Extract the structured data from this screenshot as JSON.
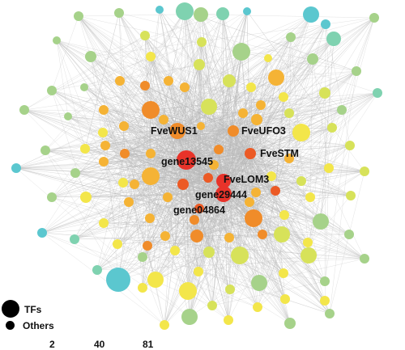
{
  "network": {
    "hub_labels": [
      {
        "id": "FveWUS1",
        "text": "FveWUS1"
      },
      {
        "id": "FveUFO3",
        "text": "FveUFO3"
      },
      {
        "id": "gene13545",
        "text": "gene13545"
      },
      {
        "id": "FveSTM",
        "text": "FveSTM"
      },
      {
        "id": "FveLOM3",
        "text": "FveLOM3"
      },
      {
        "id": "gene29444",
        "text": "gene29444"
      },
      {
        "id": "gene04864",
        "text": "gene04864"
      }
    ],
    "edge_color": "#b8b8b8",
    "node_colors": {
      "red": "#e8332a",
      "orange_red": "#ec5a25",
      "orange": "#f08c2a",
      "amber": "#f5b335",
      "yellow": "#f3e64a",
      "yellow_green": "#d7e25a",
      "light_green": "#a6d28a",
      "sea_green": "#7fd2b0",
      "teal": "#5bc7cf"
    }
  },
  "legend": {
    "size_items": [
      {
        "label": "TFs"
      },
      {
        "label": "Others"
      }
    ],
    "degree_ticks": [
      "2",
      "40",
      "81"
    ]
  }
}
